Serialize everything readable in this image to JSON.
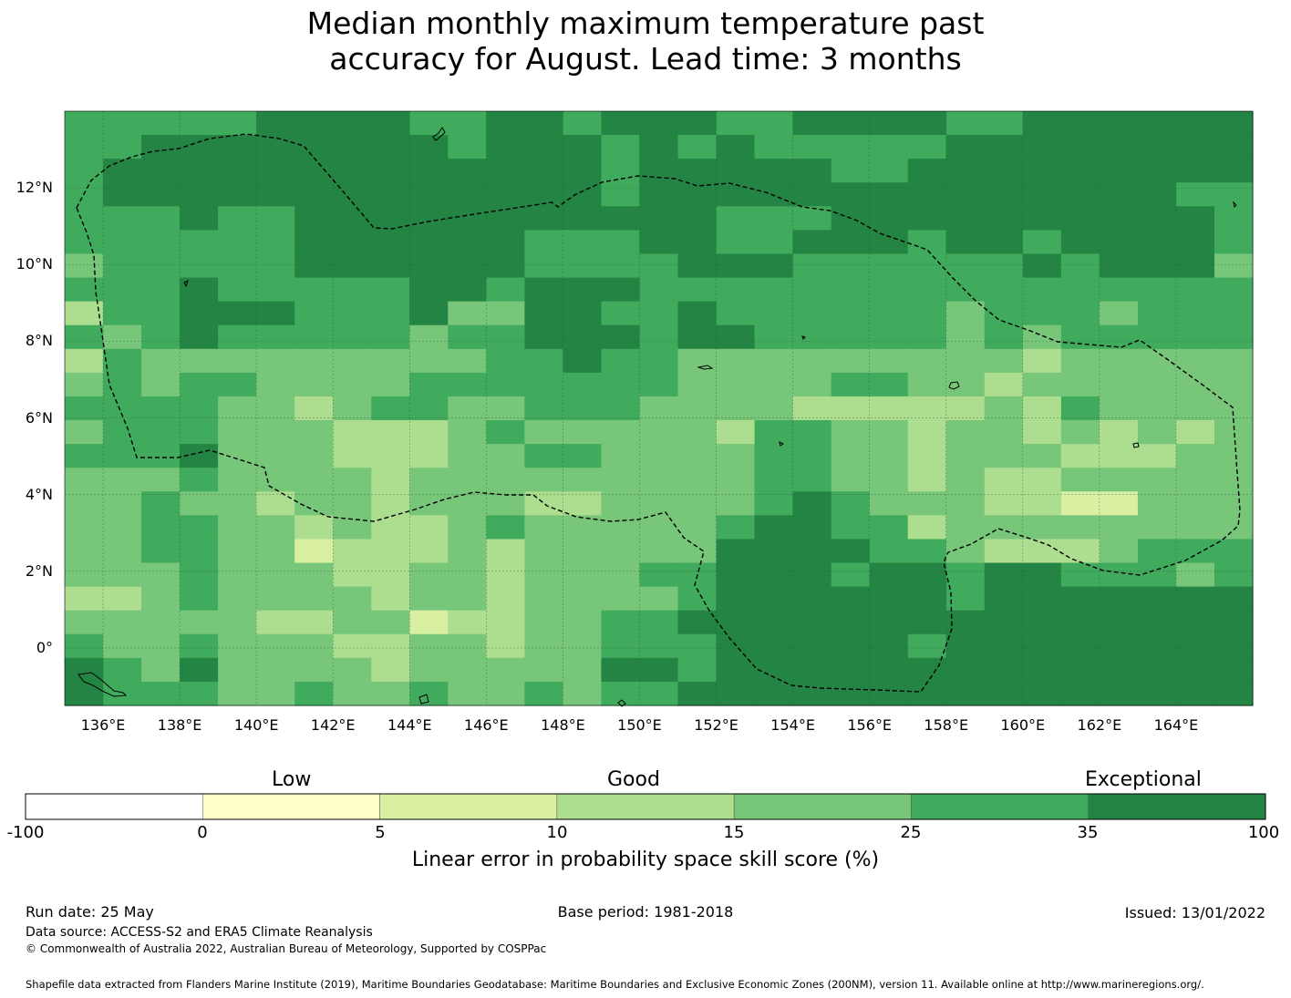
{
  "title_line1": "Median monthly maximum temperature past",
  "title_line2": "accuracy for August. Lead time: 3 months",
  "map": {
    "lon_range": [
      135,
      166
    ],
    "lat_range": [
      -1.5,
      14
    ],
    "lat_ticks": [
      {
        "value": 12,
        "label": "12°N"
      },
      {
        "value": 10,
        "label": "10°N"
      },
      {
        "value": 8,
        "label": "8°N"
      },
      {
        "value": 6,
        "label": "6°N"
      },
      {
        "value": 4,
        "label": "4°N"
      },
      {
        "value": 2,
        "label": "2°N"
      },
      {
        "value": 0,
        "label": "0°"
      }
    ],
    "lon_ticks": [
      {
        "value": 136,
        "label": "136°E"
      },
      {
        "value": 138,
        "label": "138°E"
      },
      {
        "value": 140,
        "label": "140°E"
      },
      {
        "value": 142,
        "label": "142°E"
      },
      {
        "value": 144,
        "label": "144°E"
      },
      {
        "value": 146,
        "label": "146°E"
      },
      {
        "value": 148,
        "label": "148°E"
      },
      {
        "value": 150,
        "label": "150°E"
      },
      {
        "value": 152,
        "label": "152°E"
      },
      {
        "value": 154,
        "label": "154°E"
      },
      {
        "value": 156,
        "label": "156°E"
      },
      {
        "value": 158,
        "label": "158°E"
      },
      {
        "value": 160,
        "label": "160°E"
      },
      {
        "value": 162,
        "label": "162°E"
      },
      {
        "value": 164,
        "label": "164°E"
      }
    ],
    "class_colors": [
      "#ffffff",
      "#ffffcc",
      "#d9f0a3",
      "#addd8e",
      "#78c679",
      "#41ab5d",
      "#238443"
    ],
    "grid_rows_top_to_bottom": [
      "5555566665566566655666655666666",
      "5566666666566656565555566666666",
      "5666666666666656666655666666666",
      "5666666666666656666666666666655",
      "5556556666666666655566666666665",
      "5555556666665556655666566566665",
      "4555556666665555666555555656664",
      "5556555556656665555555555555555",
      "3556665556446655655555545554555",
      "5456555554556665665555545455555",
      "3544444444455655444444444344444",
      "4545544445555555444455443444444",
      "5555443455445554444333334354444",
      "4555444333454444435544344343434",
      "5556444333445544445544344433344",
      "4445444434444444445544343344444",
      "4454434434443344445654443322444",
      "4455443433454444456655344444444",
      "4455442333434444466665543334555",
      "4445444334434445566656656655545",
      "3345444434434444566666656666666",
      "4444433442334455666666666666666",
      "5445444334434455566666566666666",
      "6546444434444466566666666666666",
      "6555445445445455666666666666666"
    ]
  },
  "colorbar": {
    "categories": [
      "Low",
      "Good",
      "Exceptional"
    ],
    "ticks": [
      "-100",
      "0",
      "5",
      "10",
      "15",
      "25",
      "35",
      "100"
    ],
    "label": "Linear error in probability space skill score (%)"
  },
  "footer": {
    "run_date": "Run date: 25 May",
    "base_period": "Base period: 1981-2018",
    "issued": "Issued: 13/01/2022",
    "data_source": "Data source: ACCESS-S2 and ERA5 Climate Reanalysis",
    "copyright": "© Commonwealth of Australia 2022, Australian Bureau of Meteorology, Supported by COSPPac",
    "shapefile": "Shapefile data extracted from Flanders Marine Institute (2019), Maritime Boundaries Geodatabase: Maritime Boundaries and Exclusive Economic Zones (200NM), version 11. Available online at http://www.marineregions.org/."
  }
}
